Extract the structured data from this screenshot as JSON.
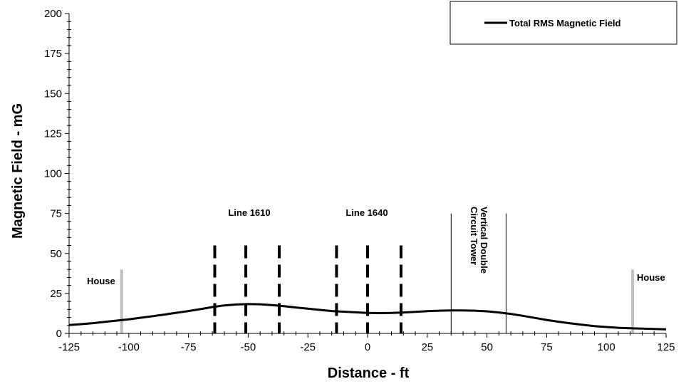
{
  "chart_data": {
    "type": "line",
    "title": "",
    "xlabel": "Distance - ft",
    "ylabel": "Magnetic Field - mG",
    "xlim": [
      -125,
      125
    ],
    "ylim": [
      0,
      200
    ],
    "x_ticks": [
      -125,
      -100,
      -75,
      -50,
      -25,
      0,
      25,
      50,
      75,
      100,
      125
    ],
    "y_ticks": [
      0,
      25,
      50,
      75,
      100,
      125,
      150,
      175,
      200
    ],
    "grid": false,
    "legend_position": "top-right",
    "series": [
      {
        "name": "Total RMS Magnetic Field",
        "color": "#000000",
        "points": [
          [
            -125,
            5.2
          ],
          [
            -120,
            5.8
          ],
          [
            -115,
            6.4
          ],
          [
            -110,
            7.2
          ],
          [
            -105,
            8.0
          ],
          [
            -100,
            8.8
          ],
          [
            -95,
            9.8
          ],
          [
            -90,
            10.8
          ],
          [
            -85,
            11.8
          ],
          [
            -80,
            12.9
          ],
          [
            -75,
            14.0
          ],
          [
            -70,
            15.2
          ],
          [
            -65,
            16.5
          ],
          [
            -60,
            17.5
          ],
          [
            -55,
            18.1
          ],
          [
            -50,
            18.4
          ],
          [
            -45,
            18.2
          ],
          [
            -40,
            17.7
          ],
          [
            -35,
            17.0
          ],
          [
            -30,
            16.2
          ],
          [
            -25,
            15.5
          ],
          [
            -20,
            14.7
          ],
          [
            -15,
            14.0
          ],
          [
            -10,
            13.6
          ],
          [
            -5,
            13.2
          ],
          [
            0,
            12.8
          ],
          [
            5,
            12.7
          ],
          [
            10,
            12.8
          ],
          [
            15,
            13.1
          ],
          [
            20,
            13.5
          ],
          [
            25,
            13.9
          ],
          [
            30,
            14.2
          ],
          [
            35,
            14.4
          ],
          [
            40,
            14.4
          ],
          [
            45,
            14.2
          ],
          [
            50,
            13.8
          ],
          [
            55,
            13.1
          ],
          [
            60,
            12.2
          ],
          [
            65,
            11.0
          ],
          [
            70,
            9.7
          ],
          [
            75,
            8.4
          ],
          [
            80,
            7.3
          ],
          [
            85,
            6.3
          ],
          [
            90,
            5.4
          ],
          [
            95,
            4.6
          ],
          [
            100,
            4.0
          ],
          [
            105,
            3.5
          ],
          [
            110,
            3.2
          ],
          [
            115,
            3.0
          ],
          [
            120,
            2.8
          ],
          [
            125,
            2.6
          ]
        ]
      }
    ],
    "conductors": {
      "line_1610": [
        -64,
        -51,
        -37
      ],
      "line_1640": [
        -13,
        0,
        14
      ],
      "top": 55,
      "bottom": 0
    },
    "tower_edges": {
      "x": [
        35,
        58
      ],
      "top": 75,
      "bottom": 0
    },
    "houses": {
      "x": [
        -103,
        111
      ],
      "top": 40,
      "bottom": 0,
      "color": "#bfbfbf"
    },
    "annotations": {
      "line_1610": "Line 1610",
      "line_1640": "Line 1640",
      "tower": "Vertical Double Circuit Tower",
      "house_left": "House",
      "house_right": "House"
    }
  }
}
